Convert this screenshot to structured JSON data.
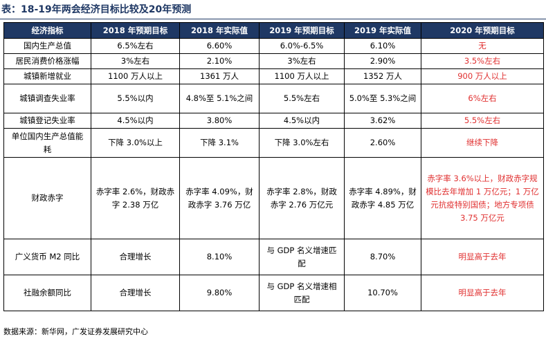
{
  "title": "表：18-19年两会经济目标比较及20年预测",
  "columns": [
    "经济指标",
    "2018 年预期目标",
    "2018 年实际值",
    "2019 年预期目标",
    "2019 年实际值",
    "2020 年预期目标"
  ],
  "rows": [
    {
      "indicator": "国内生产总值",
      "t2018": "6.5%左右",
      "a2018": "6.60%",
      "t2019": "6.0%-6.5%",
      "a2019": "6.10%",
      "f2020": "无"
    },
    {
      "indicator": "居民消费价格涨幅",
      "t2018": "3%左右",
      "a2018": "2.10%",
      "t2019": "3%左右",
      "a2019": "2.90%",
      "f2020": "3.5%左右"
    },
    {
      "indicator": "城镇新增就业",
      "t2018": "1100 万人以上",
      "a2018": "1361 万人",
      "t2019": "1100 万人以上",
      "a2019": "1352 万人",
      "f2020": "900 万人以上"
    },
    {
      "indicator": "城镇调查失业率",
      "t2018": "5.5%以内",
      "a2018": "4.8%至 5.1%之间",
      "t2019": "5.5%左右",
      "a2019": "5.0%至 5.3%之间",
      "f2020": "6%左右"
    },
    {
      "indicator": "城镇登记失业率",
      "t2018": "4.5%以内",
      "a2018": "3.80%",
      "t2019": "4.5%以内",
      "a2019": "3.62%",
      "f2020": "5.5%左右"
    },
    {
      "indicator": "单位国内生产总值能耗",
      "t2018": "下降 3.0%以上",
      "a2018": "下降 3.1%",
      "t2019": "下降 3.0%左右",
      "a2019": "2.60%",
      "f2020": "继续下降"
    },
    {
      "indicator": "财政赤字",
      "t2018": "赤字率 2.6%，财政赤字 2.38 万亿",
      "a2018": "赤字率 4.09%，财政赤字 3.76 万亿",
      "t2019": "赤字率 2.8%，财政赤字 2.76 万亿元",
      "a2019": "赤字率 4.89%，财政赤字 4.85 万亿",
      "f2020": "赤字率 3.6%以上，财政赤字规模比去年增加 1 万亿元；1 万亿元抗疫特别国债；地方专项债 3.75 万亿元"
    },
    {
      "indicator": "广义货币 M2 同比",
      "t2018": "合理增长",
      "a2018": "8.10%",
      "t2019": "与 GDP 名义增速匹配",
      "a2019": "8.70%",
      "f2020": "明显高于去年"
    },
    {
      "indicator": "社融余额同比",
      "t2018": "合理增长",
      "a2018": "9.80%",
      "t2019": "与 GDP 名义增速相匹配",
      "a2019": "10.70%",
      "f2020": "明显高于去年"
    }
  ],
  "source": "数据来源：新华网，广发证券发展研究中心",
  "colors": {
    "title": "#1f3864",
    "header_bg": "#1f3864",
    "header_text": "#ffffff",
    "forecast_text": "#e03030"
  }
}
